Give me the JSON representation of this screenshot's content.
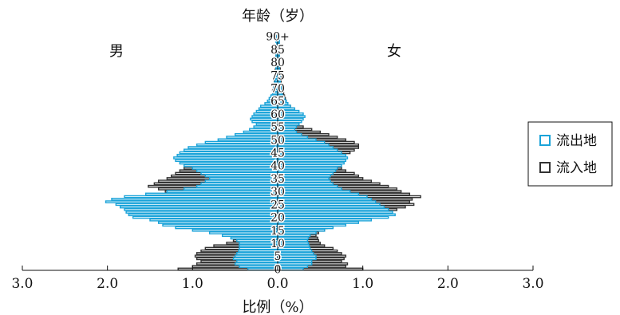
{
  "chart_data": {
    "type": "bar",
    "orientation": "horizontal",
    "title": "年龄（岁）",
    "xlabel": "比例（%）",
    "left_group_label": "男",
    "right_group_label": "女",
    "xlim": [
      -3,
      3
    ],
    "x_ticks": [
      -3.0,
      -2.0,
      -1.0,
      0.0,
      1.0,
      2.0,
      3.0
    ],
    "x_tick_labels": [
      "3.0",
      "2.0",
      "1.0",
      "0.0",
      "1.0",
      "2.0",
      "3.0"
    ],
    "y_ticks": [
      0,
      5,
      10,
      15,
      20,
      25,
      30,
      35,
      40,
      45,
      50,
      55,
      60,
      65,
      70,
      75,
      80,
      85,
      90
    ],
    "y_tick_labels": [
      "0",
      "5",
      "10",
      "15",
      "20",
      "25",
      "30",
      "35",
      "40",
      "45",
      "50",
      "55",
      "60",
      "65",
      "70",
      "75",
      "80",
      "85",
      "90+"
    ],
    "legend": {
      "position": "right",
      "entries": [
        "流出地",
        "流入地"
      ]
    },
    "colors": {
      "流出地": "#1aa3d9",
      "流入地": "#333333"
    },
    "series": [
      {
        "name": "流入地",
        "male": [
          1.17,
          1.0,
          0.95,
          0.9,
          0.95,
          0.97,
          0.95,
          0.9,
          0.85,
          0.75,
          0.6,
          0.52,
          0.5,
          0.5,
          0.55,
          0.62,
          0.62,
          0.6,
          0.65,
          0.75,
          0.85,
          1.0,
          1.1,
          1.28,
          1.3,
          1.4,
          1.35,
          1.3,
          1.25,
          1.28,
          1.32,
          1.4,
          1.52,
          1.45,
          1.4,
          1.3,
          1.25,
          1.2,
          1.15,
          1.1,
          1.08,
          1.1,
          1.12,
          1.15,
          1.0,
          0.9,
          0.8,
          0.7,
          0.62,
          0.58,
          0.5,
          0.4,
          0.35,
          0.3,
          0.28,
          0.25,
          0.22,
          0.2,
          0.18,
          0.15,
          0.14,
          0.12,
          0.11,
          0.1,
          0.1,
          0.09,
          0.08,
          0.07,
          0.06,
          0.06,
          0.05,
          0.05,
          0.04,
          0.04,
          0.04,
          0.03,
          0.03,
          0.03,
          0.02,
          0.02,
          0.02,
          0.02,
          0.02,
          0.02,
          0.02,
          0.01,
          0.01,
          0.01,
          0.01,
          0.01,
          0.01
        ],
        "female": [
          1.0,
          0.8,
          0.82,
          0.75,
          0.78,
          0.8,
          0.75,
          0.7,
          0.65,
          0.55,
          0.5,
          0.48,
          0.47,
          0.45,
          0.48,
          0.55,
          0.58,
          0.6,
          0.65,
          0.8,
          1.0,
          1.1,
          1.25,
          1.4,
          1.5,
          1.6,
          1.55,
          1.58,
          1.68,
          1.55,
          1.45,
          1.4,
          1.3,
          1.2,
          1.1,
          1.0,
          0.95,
          0.9,
          0.8,
          0.75,
          0.7,
          0.7,
          0.72,
          0.75,
          0.8,
          0.85,
          0.9,
          0.95,
          0.95,
          0.9,
          0.8,
          0.7,
          0.6,
          0.5,
          0.4,
          0.3,
          0.25,
          0.22,
          0.2,
          0.22,
          0.25,
          0.2,
          0.18,
          0.15,
          0.12,
          0.1,
          0.09,
          0.08,
          0.07,
          0.06,
          0.05,
          0.05,
          0.04,
          0.04,
          0.04,
          0.03,
          0.03,
          0.03,
          0.03,
          0.02,
          0.02,
          0.02,
          0.02,
          0.02,
          0.02,
          0.02,
          0.02,
          0.01,
          0.01,
          0.01,
          0.01
        ]
      },
      {
        "name": "流出地",
        "male": [
          0.35,
          0.45,
          0.5,
          0.48,
          0.52,
          0.5,
          0.48,
          0.46,
          0.45,
          0.45,
          0.45,
          0.48,
          0.55,
          0.65,
          0.8,
          1.0,
          1.2,
          1.35,
          1.4,
          1.5,
          1.7,
          1.75,
          1.78,
          1.8,
          1.85,
          1.9,
          2.02,
          1.95,
          1.8,
          1.55,
          1.3,
          1.1,
          0.95,
          0.9,
          0.85,
          0.8,
          0.85,
          0.9,
          0.95,
          1.0,
          1.1,
          1.15,
          1.2,
          1.22,
          1.18,
          1.15,
          1.1,
          1.05,
          0.95,
          0.85,
          0.7,
          0.6,
          0.5,
          0.4,
          0.33,
          0.28,
          0.25,
          0.3,
          0.32,
          0.3,
          0.28,
          0.25,
          0.22,
          0.2,
          0.15,
          0.12,
          0.1,
          0.08,
          0.06,
          0.05,
          0.05,
          0.04,
          0.04,
          0.03,
          0.03,
          0.03,
          0.03,
          0.02,
          0.02,
          0.02,
          0.02,
          0.02,
          0.02,
          0.02,
          0.02,
          0.02,
          0.02,
          0.01,
          0.02,
          0.02,
          0.01
        ],
        "female": [
          0.3,
          0.35,
          0.4,
          0.4,
          0.45,
          0.45,
          0.42,
          0.4,
          0.38,
          0.37,
          0.36,
          0.35,
          0.36,
          0.38,
          0.45,
          0.55,
          0.65,
          0.8,
          0.95,
          1.1,
          1.3,
          1.38,
          1.35,
          1.3,
          1.25,
          1.2,
          1.15,
          1.1,
          1.05,
          0.95,
          0.85,
          0.75,
          0.7,
          0.65,
          0.62,
          0.6,
          0.62,
          0.65,
          0.68,
          0.7,
          0.75,
          0.78,
          0.8,
          0.82,
          0.8,
          0.75,
          0.7,
          0.65,
          0.6,
          0.55,
          0.45,
          0.35,
          0.28,
          0.22,
          0.2,
          0.22,
          0.25,
          0.28,
          0.3,
          0.32,
          0.3,
          0.25,
          0.2,
          0.15,
          0.12,
          0.1,
          0.08,
          0.06,
          0.05,
          0.04,
          0.04,
          0.04,
          0.03,
          0.03,
          0.03,
          0.03,
          0.03,
          0.02,
          0.02,
          0.02,
          0.02,
          0.02,
          0.02,
          0.02,
          0.02,
          0.02,
          0.02,
          0.02,
          0.02,
          0.02,
          0.02
        ]
      }
    ]
  }
}
